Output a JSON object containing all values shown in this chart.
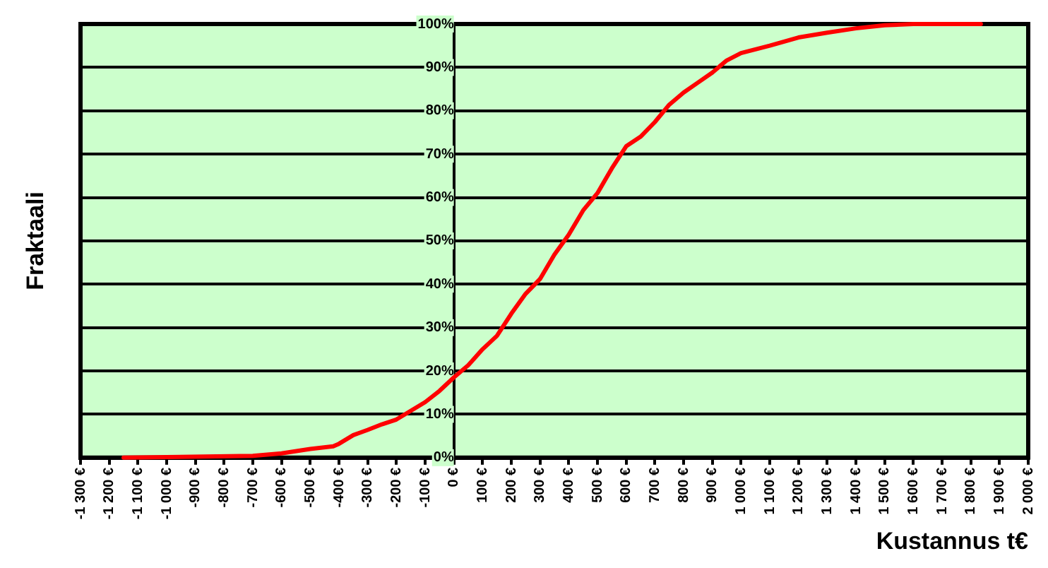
{
  "chart_data": {
    "type": "line",
    "xlabel": "Kustannus t€",
    "ylabel": "Fraktaali",
    "x": [
      -1150,
      -700,
      -600,
      -500,
      -420,
      -400,
      -350,
      -300,
      -250,
      -200,
      -100,
      -50,
      0,
      50,
      100,
      150,
      200,
      250,
      300,
      350,
      400,
      450,
      500,
      550,
      600,
      650,
      700,
      750,
      800,
      850,
      900,
      950,
      1000,
      1100,
      1200,
      1300,
      1400,
      1500,
      1600,
      1835
    ],
    "series": [
      {
        "color": "#ff0000",
        "values": [
          0,
          0.4,
          1,
          2,
          2.6,
          3.2,
          5.2,
          6.4,
          7.7,
          8.8,
          12.8,
          15.4,
          18.5,
          21.3,
          25,
          28.1,
          33.2,
          37.8,
          41.2,
          46.8,
          51.4,
          57,
          61,
          66.7,
          71.8,
          74,
          77.4,
          81.4,
          84.2,
          86.5,
          88.8,
          91.6,
          93.3,
          95,
          96.9,
          98,
          99,
          99.7,
          100,
          100
        ]
      }
    ],
    "xlim": [
      -1300,
      2000
    ],
    "xticks": [
      {
        "value": -1300,
        "label": "-1 300 €"
      },
      {
        "value": -1200,
        "label": "-1 200 €"
      },
      {
        "value": -1100,
        "label": "-1 100 €"
      },
      {
        "value": -1000,
        "label": "-1 000 €"
      },
      {
        "value": -900,
        "label": "-900 €"
      },
      {
        "value": -800,
        "label": "-800 €"
      },
      {
        "value": -700,
        "label": "-700 €"
      },
      {
        "value": -600,
        "label": "-600 €"
      },
      {
        "value": -500,
        "label": "-500 €"
      },
      {
        "value": -400,
        "label": "-400 €"
      },
      {
        "value": -300,
        "label": "-300 €"
      },
      {
        "value": -200,
        "label": "-200 €"
      },
      {
        "value": -100,
        "label": "-100 €"
      },
      {
        "value": 0,
        "label": "0 €"
      },
      {
        "value": 100,
        "label": "100 €"
      },
      {
        "value": 200,
        "label": "200 €"
      },
      {
        "value": 300,
        "label": "300 €"
      },
      {
        "value": 400,
        "label": "400 €"
      },
      {
        "value": 500,
        "label": "500 €"
      },
      {
        "value": 600,
        "label": "600 €"
      },
      {
        "value": 700,
        "label": "700 €"
      },
      {
        "value": 800,
        "label": "800 €"
      },
      {
        "value": 900,
        "label": "900 €"
      },
      {
        "value": 1000,
        "label": "1 000 €"
      },
      {
        "value": 1100,
        "label": "1 100 €"
      },
      {
        "value": 1200,
        "label": "1 200 €"
      },
      {
        "value": 1300,
        "label": "1 300 €"
      },
      {
        "value": 1400,
        "label": "1 400 €"
      },
      {
        "value": 1500,
        "label": "1 500 €"
      },
      {
        "value": 1600,
        "label": "1 600 €"
      },
      {
        "value": 1700,
        "label": "1 700 €"
      },
      {
        "value": 1800,
        "label": "1 800 €"
      },
      {
        "value": 1900,
        "label": "1 900 €"
      },
      {
        "value": 2000,
        "label": "2 000 €"
      }
    ],
    "ylim": [
      0,
      100
    ],
    "yticks": [
      {
        "value": 0,
        "label": "0%"
      },
      {
        "value": 10,
        "label": "10%"
      },
      {
        "value": 20,
        "label": "20%"
      },
      {
        "value": 30,
        "label": "30%"
      },
      {
        "value": 40,
        "label": "40%"
      },
      {
        "value": 50,
        "label": "50%"
      },
      {
        "value": 60,
        "label": "60%"
      },
      {
        "value": 70,
        "label": "70%"
      },
      {
        "value": 80,
        "label": "80%"
      },
      {
        "value": 90,
        "label": "90%"
      },
      {
        "value": 100,
        "label": "100%"
      }
    ],
    "grid": "y",
    "legend": false,
    "marker": "none",
    "line_style": "solid"
  }
}
